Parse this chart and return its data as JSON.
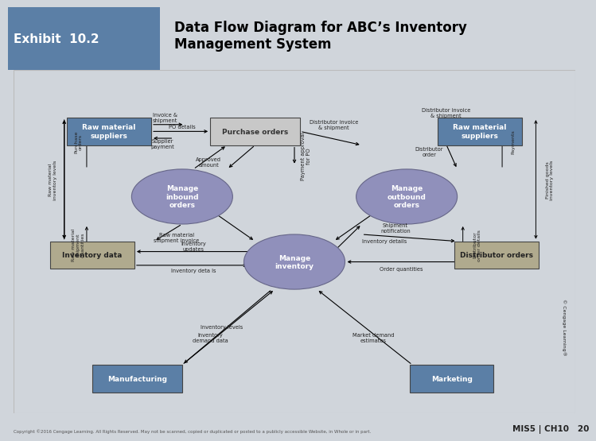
{
  "title_exhibit": "Exhibit  10.2",
  "title_main": "Data Flow Diagram for ABC’s Inventory\nManagement System",
  "bg_color": "#d0d5db",
  "header_bg": "#5b7fa6",
  "diagram_bg": "#eef0f2",
  "box_blue": "#5b7fa6",
  "box_gray_green": "#b0aa8e",
  "box_light_gray": "#c8c8c8",
  "circle_color": "#9090bb",
  "circle_edge": "#666688",
  "footer_text": "Copyright ©2016 Cengage Learning. All Rights Reserved. May not be scanned, copied or duplicated or posted to a publicly accessible Website, in Whole or in part.",
  "footer_right": "MIS5 | CH10   20"
}
